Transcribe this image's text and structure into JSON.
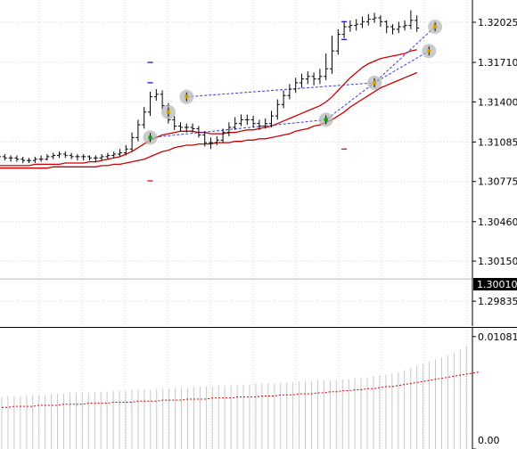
{
  "chart_data": [
    {
      "type": "candlestick",
      "title": "",
      "price_axis": {
        "ticks": [
          "1.32025",
          "1.31710",
          "1.31400",
          "1.31085",
          "1.30775",
          "1.30460",
          "1.30150",
          "1.29835"
        ],
        "range": [
          1.2964,
          1.322
        ]
      },
      "current_price": {
        "label": "1.30010",
        "value": 1.3001
      },
      "grid": true,
      "bars": {
        "open": [
          1.3098,
          1.3097,
          1.3096,
          1.3096,
          1.3095,
          1.3094,
          1.3094,
          1.3095,
          1.3095,
          1.3097,
          1.3098,
          1.3099,
          1.3098,
          1.3097,
          1.3097,
          1.3097,
          1.3096,
          1.3096,
          1.3097,
          1.3098,
          1.3099,
          1.31,
          1.3103,
          1.3112,
          1.3122,
          1.3132,
          1.3144,
          1.3146,
          1.3137,
          1.3126,
          1.3121,
          1.312,
          1.312,
          1.3119,
          1.3114,
          1.3108,
          1.3108,
          1.311,
          1.3116,
          1.312,
          1.3123,
          1.3126,
          1.3126,
          1.3123,
          1.3121,
          1.3123,
          1.3129,
          1.3138,
          1.3145,
          1.315,
          1.3155,
          1.3158,
          1.316,
          1.3158,
          1.316,
          1.3166,
          1.318,
          1.3193,
          1.3199,
          1.32,
          1.3201,
          1.3203,
          1.3205,
          1.3206,
          1.3203,
          1.3199,
          1.3197,
          1.3199,
          1.32,
          1.3204
        ],
        "close": [
          1.3097,
          1.3096,
          1.3096,
          1.3095,
          1.3094,
          1.3094,
          1.3095,
          1.3095,
          1.3097,
          1.3098,
          1.3099,
          1.3098,
          1.3097,
          1.3097,
          1.3097,
          1.3096,
          1.3096,
          1.3097,
          1.3098,
          1.3099,
          1.31,
          1.3103,
          1.3112,
          1.3122,
          1.3132,
          1.3144,
          1.3146,
          1.3137,
          1.3126,
          1.3121,
          1.312,
          1.312,
          1.3119,
          1.3114,
          1.3108,
          1.3108,
          1.311,
          1.3116,
          1.312,
          1.3123,
          1.3126,
          1.3126,
          1.3123,
          1.3121,
          1.3123,
          1.3129,
          1.3138,
          1.3145,
          1.315,
          1.3155,
          1.3158,
          1.316,
          1.3158,
          1.316,
          1.3166,
          1.318,
          1.3193,
          1.3199,
          1.32,
          1.3201,
          1.3203,
          1.3205,
          1.3206,
          1.3203,
          1.3199,
          1.3197,
          1.3199,
          1.32,
          1.3204,
          1.3198
        ],
        "high": [
          1.31,
          1.3099,
          1.3098,
          1.3098,
          1.3097,
          1.3096,
          1.3097,
          1.3098,
          1.3099,
          1.31,
          1.3101,
          1.3101,
          1.31,
          1.3099,
          1.3099,
          1.3098,
          1.3098,
          1.3099,
          1.31,
          1.3101,
          1.3103,
          1.3106,
          1.3116,
          1.3126,
          1.3136,
          1.3148,
          1.315,
          1.3149,
          1.3139,
          1.3129,
          1.3124,
          1.3123,
          1.3123,
          1.3121,
          1.3117,
          1.3112,
          1.3113,
          1.3119,
          1.3124,
          1.3128,
          1.313,
          1.313,
          1.3129,
          1.3126,
          1.3127,
          1.3133,
          1.3142,
          1.3149,
          1.3154,
          1.3159,
          1.3162,
          1.3164,
          1.3163,
          1.3166,
          1.3178,
          1.3192,
          1.3197,
          1.3203,
          1.3204,
          1.3205,
          1.3207,
          1.3209,
          1.321,
          1.3208,
          1.3204,
          1.3201,
          1.3203,
          1.3204,
          1.3212,
          1.3208
        ],
        "low": [
          1.3095,
          1.3094,
          1.3093,
          1.3093,
          1.3092,
          1.3092,
          1.3092,
          1.3093,
          1.3094,
          1.3095,
          1.3096,
          1.3096,
          1.3095,
          1.3094,
          1.3094,
          1.3094,
          1.3093,
          1.3094,
          1.3095,
          1.3096,
          1.3097,
          1.3098,
          1.3101,
          1.3109,
          1.3119,
          1.3129,
          1.3141,
          1.3134,
          1.3123,
          1.3118,
          1.3117,
          1.3116,
          1.3116,
          1.3112,
          1.3105,
          1.3103,
          1.3106,
          1.3108,
          1.3113,
          1.3118,
          1.3121,
          1.3122,
          1.312,
          1.3118,
          1.3119,
          1.312,
          1.3126,
          1.3135,
          1.3142,
          1.3147,
          1.3151,
          1.3154,
          1.3153,
          1.3154,
          1.3157,
          1.3162,
          1.3177,
          1.319,
          1.3195,
          1.3196,
          1.3198,
          1.32,
          1.3202,
          1.3199,
          1.3194,
          1.3193,
          1.3194,
          1.3196,
          1.3197,
          1.3195
        ]
      },
      "moving_averages": [
        {
          "color": "#cc0000",
          "values": [
            1.309,
            1.309,
            1.309,
            1.309,
            1.309,
            1.309,
            1.3091,
            1.3091,
            1.3091,
            1.3091,
            1.3091,
            1.3092,
            1.3092,
            1.3092,
            1.3092,
            1.3093,
            1.3093,
            1.3094,
            1.3095,
            1.3096,
            1.3097,
            1.3099,
            1.3101,
            1.3104,
            1.3107,
            1.311,
            1.3112,
            1.3114,
            1.3115,
            1.3116,
            1.3117,
            1.3117,
            1.3117,
            1.3116,
            1.3116,
            1.3115,
            1.3115,
            1.3115,
            1.3116,
            1.3116,
            1.3117,
            1.3118,
            1.3118,
            1.3119,
            1.312,
            1.3121,
            1.3123,
            1.3125,
            1.3127,
            1.3129,
            1.3131,
            1.3133,
            1.3135,
            1.3137,
            1.314,
            1.3144,
            1.3149,
            1.3154,
            1.3159,
            1.3163,
            1.3167,
            1.317,
            1.3172,
            1.3174,
            1.3175,
            1.3176,
            1.3177,
            1.3178,
            1.318,
            1.3181
          ]
        },
        {
          "color": "#cc0000",
          "values": [
            1.3088,
            1.3088,
            1.3088,
            1.3088,
            1.3088,
            1.3088,
            1.3088,
            1.3088,
            1.3088,
            1.3089,
            1.3089,
            1.3089,
            1.3089,
            1.3089,
            1.3089,
            1.3089,
            1.3089,
            1.309,
            1.309,
            1.3091,
            1.3091,
            1.3092,
            1.3093,
            1.3094,
            1.3095,
            1.3097,
            1.3099,
            1.3101,
            1.3102,
            1.3104,
            1.3105,
            1.3106,
            1.3106,
            1.3107,
            1.3107,
            1.3107,
            1.3108,
            1.3108,
            1.3108,
            1.3109,
            1.3109,
            1.311,
            1.311,
            1.3111,
            1.3111,
            1.3112,
            1.3113,
            1.3114,
            1.3115,
            1.3117,
            1.3118,
            1.3119,
            1.3121,
            1.3122,
            1.3124,
            1.3126,
            1.3129,
            1.3132,
            1.3136,
            1.3139,
            1.3142,
            1.3145,
            1.3148,
            1.3151,
            1.3153,
            1.3155,
            1.3157,
            1.3159,
            1.3161,
            1.3163
          ]
        }
      ],
      "signal_markers": [
        {
          "bar": 25,
          "price": 1.3112,
          "color": "#00aa00"
        },
        {
          "bar": 28,
          "price": 1.3132,
          "color": "#d4a000"
        },
        {
          "bar": 31,
          "price": 1.3144,
          "color": "#d4a000"
        },
        {
          "bar": 54,
          "price": 1.3126,
          "color": "#00aa00"
        },
        {
          "bar": 62,
          "price": 1.3155,
          "color": "#d4a000"
        },
        {
          "bar": 71,
          "price": 1.318,
          "color": "#d4a000"
        },
        {
          "bar": 72,
          "price": 1.3199,
          "color": "#d4a000"
        }
      ],
      "level_dashes": [
        {
          "bar": 25,
          "price": 1.3171,
          "color": "#0000cc"
        },
        {
          "bar": 25,
          "price": 1.3155,
          "color": "#0000cc"
        },
        {
          "bar": 25,
          "price": 1.3078,
          "color": "#cc0000"
        },
        {
          "bar": 57,
          "price": 1.3203,
          "color": "#0000cc"
        },
        {
          "bar": 57,
          "price": 1.3189,
          "color": "#0000cc"
        },
        {
          "bar": 57,
          "price": 1.3103,
          "color": "#cc0000"
        }
      ]
    },
    {
      "type": "histogram",
      "title": "",
      "axis": {
        "ticks": [
          "0.01081",
          "0.00"
        ],
        "range": [
          0.0,
          0.01165
        ]
      },
      "grid": true,
      "values": [
        0.005,
        0.0051,
        0.0051,
        0.0051,
        0.0051,
        0.0052,
        0.0052,
        0.0052,
        0.0053,
        0.0053,
        0.0053,
        0.0054,
        0.0054,
        0.0054,
        0.0054,
        0.0055,
        0.0055,
        0.0055,
        0.0056,
        0.0056,
        0.0056,
        0.0057,
        0.0057,
        0.0057,
        0.0057,
        0.0058,
        0.0058,
        0.0058,
        0.0059,
        0.0059,
        0.0059,
        0.006,
        0.006,
        0.006,
        0.006,
        0.0061,
        0.0061,
        0.0061,
        0.0062,
        0.0062,
        0.0062,
        0.0063,
        0.0063,
        0.0063,
        0.0063,
        0.0064,
        0.0064,
        0.0064,
        0.0065,
        0.0065,
        0.0065,
        0.0066,
        0.0066,
        0.0066,
        0.0066,
        0.0067,
        0.0067,
        0.0068,
        0.0068,
        0.0069,
        0.007,
        0.0071,
        0.0072,
        0.0073,
        0.0074,
        0.0076,
        0.0078,
        0.008,
        0.0082,
        0.0084,
        0.0086,
        0.0088,
        0.009,
        0.0093,
        0.0096,
        0.0099,
        0.0102,
        0.0105
      ],
      "signal_line": [
        0.004,
        0.004,
        0.0041,
        0.0041,
        0.0041,
        0.0041,
        0.0042,
        0.0042,
        0.0042,
        0.0042,
        0.0043,
        0.0043,
        0.0043,
        0.0043,
        0.0044,
        0.0044,
        0.0044,
        0.0044,
        0.0045,
        0.0045,
        0.0045,
        0.0045,
        0.0046,
        0.0046,
        0.0046,
        0.0046,
        0.0047,
        0.0047,
        0.0047,
        0.0047,
        0.0048,
        0.0048,
        0.0048,
        0.0048,
        0.0049,
        0.0049,
        0.0049,
        0.0049,
        0.005,
        0.005,
        0.005,
        0.005,
        0.0051,
        0.0051,
        0.0051,
        0.0052,
        0.0052,
        0.0052,
        0.0053,
        0.0053,
        0.0053,
        0.0054,
        0.0054,
        0.0055,
        0.0055,
        0.0056,
        0.0056,
        0.0057,
        0.0057,
        0.0058,
        0.0058,
        0.0059,
        0.006,
        0.006,
        0.0061,
        0.0062,
        0.0063,
        0.0064,
        0.0065,
        0.0066,
        0.0067,
        0.0068,
        0.0069,
        0.007,
        0.0071,
        0.0072,
        0.0073,
        0.0074
      ],
      "colors": {
        "histogram": "#c8c8c8",
        "signal_line": "#cc0000"
      }
    }
  ],
  "colors": {
    "background": "#ffffff",
    "grid": "#d8d8d8",
    "candles": "#000000",
    "zigzag": "#3a3adf",
    "marker_halo": "#b8b8b8",
    "current_price_bg": "#000000",
    "axis": "#000000"
  }
}
